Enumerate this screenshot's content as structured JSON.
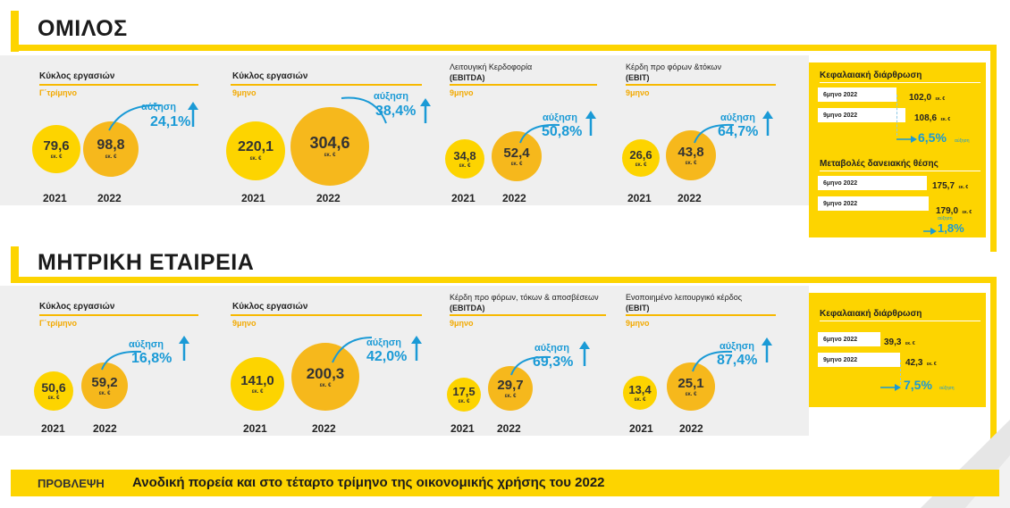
{
  "colors": {
    "accent_yellow": "#fdd400",
    "accent_orange": "#f6b81c",
    "growth_blue": "#1a9ad6",
    "band_grey": "#efefef"
  },
  "group": {
    "title": "ΟΜΙΛΟΣ",
    "metrics": [
      {
        "title": "Κύκλος εργασιών",
        "period": "Γ΄τρίμηνο",
        "v2021": "79,6",
        "v2022": "98,8",
        "unit": "εκ. €",
        "growth_label": "αύξηση",
        "growth": "24,1%"
      },
      {
        "title": "Κύκλος εργασιών",
        "period": "9μηνο",
        "v2021": "220,1",
        "v2022": "304,6",
        "unit": "εκ. €",
        "growth_label": "αύξηση",
        "growth": "38,4%"
      },
      {
        "title": "Λειτουγική Κερδοφορία",
        "title2": "(EBITDA)",
        "period": "9μηνο",
        "v2021": "34,8",
        "v2022": "52,4",
        "unit": "εκ. €",
        "growth_label": "αύξηση",
        "growth": "50,8%"
      },
      {
        "title": "Κέρδη προ φόρων &τόκων",
        "title2": "(EBIT)",
        "period": "9μηνο",
        "v2021": "26,6",
        "v2022": "43,8",
        "unit": "εκ. €",
        "growth_label": "αύξηση",
        "growth": "64,7%"
      }
    ],
    "years": [
      "2021",
      "2022"
    ],
    "capital": {
      "title": "Κεφαλαιακή διάρθρωση",
      "rows": [
        {
          "label": "6μηνο 2022",
          "value": "102,0",
          "unit": "εκ. €"
        },
        {
          "label": "9μηνο 2022",
          "value": "108,6",
          "unit": "εκ. €"
        }
      ],
      "pct": "6,5%",
      "pct_label": "αύξηση"
    },
    "debt": {
      "title": "Μεταβολές δανειακής θέσης",
      "rows": [
        {
          "label": "6μηνο 2022",
          "value": "175,7",
          "unit": "εκ. €"
        },
        {
          "label": "9μηνο 2022",
          "value": "179,0",
          "unit": "εκ. €"
        }
      ],
      "pct": "1,8%",
      "pct_label": "αύξηση"
    }
  },
  "parent": {
    "title": "ΜΗΤΡΙΚΗ ΕΤΑΙΡΕΙΑ",
    "metrics": [
      {
        "title": "Κύκλος εργασιών",
        "period": "Γ΄τρίμηνο",
        "v2021": "50,6",
        "v2022": "59,2",
        "unit": "εκ. €",
        "growth_label": "αύξηση",
        "growth": "16,8%"
      },
      {
        "title": "Κύκλος εργασιών",
        "period": "9μηνο",
        "v2021": "141,0",
        "v2022": "200,3",
        "unit": "εκ. €",
        "growth_label": "αύξηση",
        "growth": "42,0%"
      },
      {
        "title": "Κέρδη προ φόρων, τόκων & αποσβέσεων",
        "title2": "(EBITDA)",
        "period": "9μηνο",
        "v2021": "17,5",
        "v2022": "29,7",
        "unit": "εκ. €",
        "growth_label": "αύξηση",
        "growth": "69,3%"
      },
      {
        "title": "Ενοποιημένο λειτουργικό κέρδος",
        "title2": "(EBIT)",
        "period": "9μηνο",
        "v2021": "13,4",
        "v2022": "25,1",
        "unit": "εκ. €",
        "growth_label": "αύξηση",
        "growth": "87,4%"
      }
    ],
    "years": [
      "2021",
      "2022"
    ],
    "capital": {
      "title": "Κεφαλαιακή διάρθρωση",
      "rows": [
        {
          "label": "6μηνο 2022",
          "value": "39,3",
          "unit": "εκ. €"
        },
        {
          "label": "9μηνο 2022",
          "value": "42,3",
          "unit": "εκ. €"
        }
      ],
      "pct": "7,5%",
      "pct_label": "αύξηση"
    }
  },
  "footer": {
    "label": "ΠΡΟΒΛΕΨΗ",
    "text": "Ανοδική πορεία και στο τέταρτο τρίμηνο της οικονομικής χρήσης του 2022"
  },
  "chart_data": [
    {
      "type": "bar",
      "title": "Κύκλος εργασιών",
      "subtitle": "Γ΄τρίμηνο",
      "categories": [
        "2021",
        "2022"
      ],
      "values": [
        79.6,
        98.8
      ],
      "unit": "εκ. €",
      "growth": "24,1%"
    },
    {
      "type": "bar",
      "title": "Κύκλος εργασιών",
      "subtitle": "9μηνο",
      "categories": [
        "2021",
        "2022"
      ],
      "values": [
        220.1,
        304.6
      ],
      "unit": "εκ. €",
      "growth": "38,4%"
    },
    {
      "type": "bar",
      "title": "Λειτουγική Κερδοφορία (EBITDA)",
      "subtitle": "9μηνο",
      "categories": [
        "2021",
        "2022"
      ],
      "values": [
        34.8,
        52.4
      ],
      "unit": "εκ. €",
      "growth": "50,8%"
    },
    {
      "type": "bar",
      "title": "Κέρδη προ φόρων &τόκων (EBIT)",
      "subtitle": "9μηνο",
      "categories": [
        "2021",
        "2022"
      ],
      "values": [
        26.6,
        43.8
      ],
      "unit": "εκ. €",
      "growth": "64,7%"
    },
    {
      "type": "bar",
      "title": "Κύκλος εργασιών",
      "subtitle": "Γ΄τρίμηνο",
      "categories": [
        "2021",
        "2022"
      ],
      "values": [
        50.6,
        59.2
      ],
      "unit": "εκ. €",
      "growth": "16,8%"
    },
    {
      "type": "bar",
      "title": "Κύκλος εργασιών",
      "subtitle": "9μηνο",
      "categories": [
        "2021",
        "2022"
      ],
      "values": [
        141.0,
        200.3
      ],
      "unit": "εκ. €",
      "growth": "42,0%"
    },
    {
      "type": "bar",
      "title": "Κέρδη προ φόρων, τόκων & αποσβέσεων (EBITDA)",
      "subtitle": "9μηνο",
      "categories": [
        "2021",
        "2022"
      ],
      "values": [
        17.5,
        29.7
      ],
      "unit": "εκ. €",
      "growth": "69,3%"
    },
    {
      "type": "bar",
      "title": "Ενοποιημένο λειτουργικό κέρδος (EBIT)",
      "subtitle": "9μηνο",
      "categories": [
        "2021",
        "2022"
      ],
      "values": [
        13.4,
        25.1
      ],
      "unit": "εκ. €",
      "growth": "87,4%"
    }
  ]
}
